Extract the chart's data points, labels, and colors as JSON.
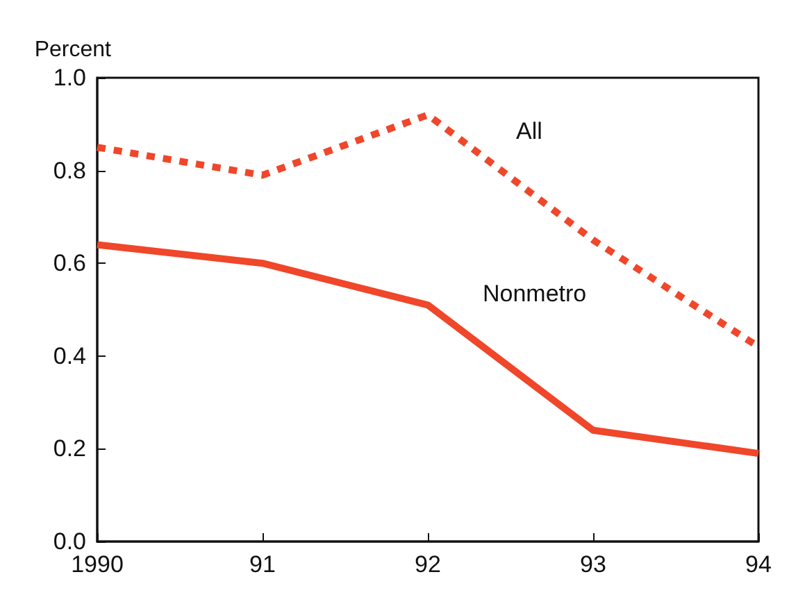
{
  "chart_data": {
    "type": "line",
    "ylabel": "Percent",
    "categories": [
      "1990",
      "91",
      "92",
      "93",
      "94"
    ],
    "series": [
      {
        "name": "All",
        "color": "#f0462a",
        "line_style": "dotted",
        "values": [
          0.85,
          0.79,
          0.92,
          0.65,
          0.42
        ]
      },
      {
        "name": "Nonmetro",
        "color": "#f0462a",
        "line_style": "solid",
        "values": [
          0.64,
          0.6,
          0.51,
          0.24,
          0.19
        ]
      }
    ],
    "ylim": [
      0,
      1
    ],
    "yticks": [
      {
        "value": 0,
        "label": "0.0"
      },
      0.2,
      0.4,
      0.6,
      0.8,
      {
        "value": 1,
        "label": "1.0"
      }
    ],
    "grid": false,
    "legend": false,
    "marker": "none"
  }
}
